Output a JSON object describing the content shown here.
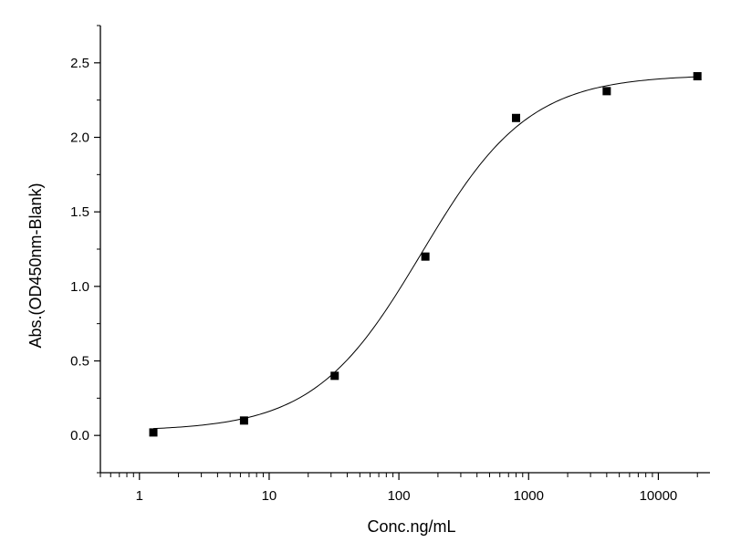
{
  "chart_data": {
    "type": "scatter",
    "title": "",
    "xlabel": "Conc.ng/mL",
    "ylabel": "Abs.(OD450nm-Blank)",
    "x_scale": "log",
    "xlim": [
      0.5,
      25000
    ],
    "ylim": [
      -0.25,
      2.75
    ],
    "x_ticks": [
      1,
      10,
      100,
      1000,
      10000
    ],
    "x_tick_labels": [
      "1",
      "10",
      "100",
      "1000",
      "10000"
    ],
    "y_ticks": [
      0.0,
      0.5,
      1.0,
      1.5,
      2.0,
      2.5
    ],
    "y_tick_labels": [
      "0.0",
      "0.5",
      "1.0",
      "1.5",
      "2.0",
      "2.5"
    ],
    "grid": false,
    "legend": "none",
    "series": [
      {
        "marker": "square",
        "color": "#000000",
        "x": [
          1.28,
          6.4,
          32,
          160,
          800,
          4000,
          20000
        ],
        "y": [
          0.02,
          0.1,
          0.4,
          1.2,
          2.13,
          2.31,
          2.41
        ]
      }
    ],
    "fit_curve": {
      "model": "4PL",
      "color": "#000000",
      "bottom": 0.03,
      "top": 2.42,
      "ec50": 150,
      "hill": 1.05
    }
  }
}
